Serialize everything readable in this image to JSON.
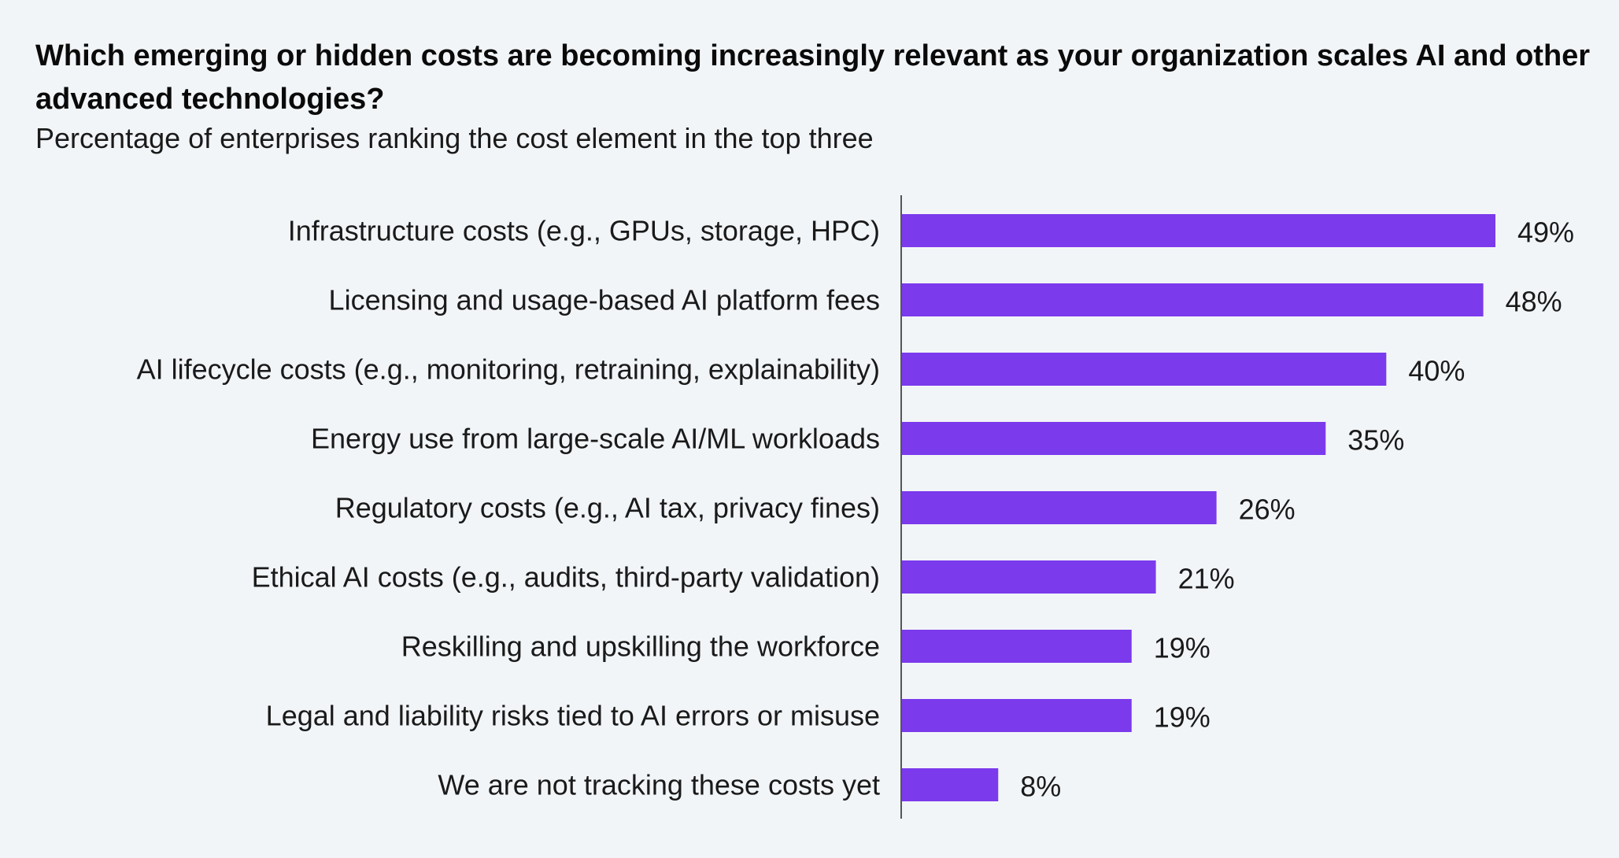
{
  "title": "Which emerging or hidden costs are becoming increasingly relevant as your organization scales AI and other advanced technologies?",
  "subtitle": "Percentage of enterprises ranking the cost element in the top three",
  "colors": {
    "bar": "#7b3aec",
    "axis": "#555555",
    "background": "#f2f5f8"
  },
  "chart_data": {
    "type": "bar",
    "orientation": "horizontal",
    "categories": [
      "Infrastructure costs (e.g., GPUs, storage, HPC)",
      "Licensing and usage-based AI platform fees",
      "AI lifecycle costs (e.g., monitoring, retraining, explainability)",
      "Energy use from large-scale AI/ML workloads",
      "Regulatory costs (e.g., AI tax, privacy fines)",
      "Ethical AI costs (e.g., audits, third-party validation)",
      "Reskilling and upskilling the workforce",
      "Legal and liability risks tied to AI errors or misuse",
      "We are not tracking these costs yet"
    ],
    "values": [
      49,
      48,
      40,
      35,
      26,
      21,
      19,
      19,
      8
    ],
    "value_labels": [
      "49%",
      "48%",
      "40%",
      "35%",
      "26%",
      "21%",
      "19%",
      "19%",
      "8%"
    ],
    "unit": "%",
    "xlim": [
      0,
      49
    ],
    "grid": false,
    "legend": "none"
  }
}
